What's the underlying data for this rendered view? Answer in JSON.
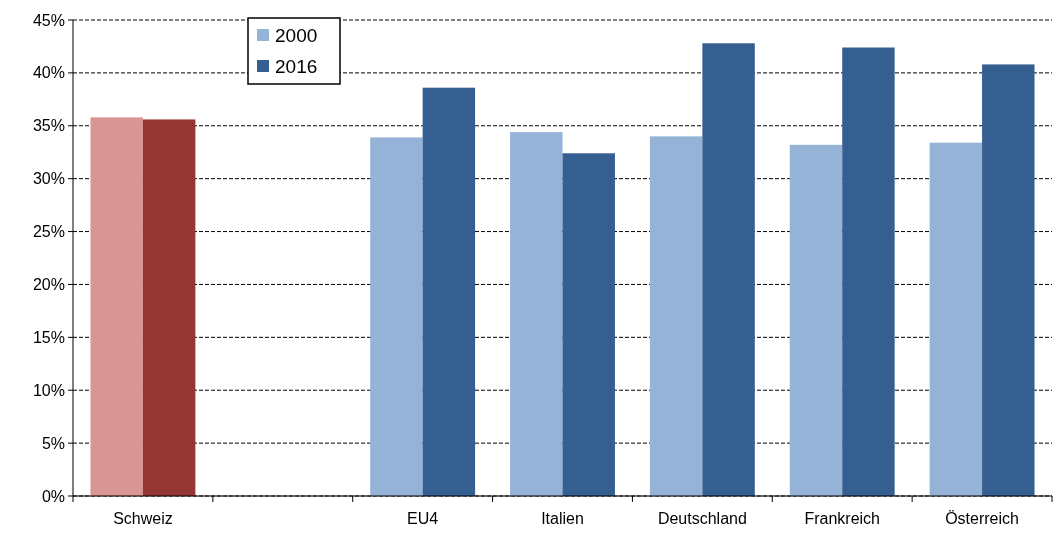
{
  "chart_data": {
    "type": "bar",
    "categories": [
      "Schweiz",
      null,
      "EU4",
      "Italien",
      "Deutschland",
      "Frankreich",
      "Österreich"
    ],
    "series": [
      {
        "name": "2000",
        "color": "#95b3d7",
        "colors": [
          "#d99694",
          null,
          "#95b3d7",
          "#95b3d7",
          "#95b3d7",
          "#95b3d7",
          "#95b3d7"
        ],
        "values": [
          35.8,
          null,
          33.9,
          34.4,
          34.0,
          33.2,
          33.4
        ]
      },
      {
        "name": "2016",
        "color": "#365f91",
        "colors": [
          "#953735",
          null,
          "#365f91",
          "#365f91",
          "#365f91",
          "#365f91",
          "#365f91"
        ],
        "values": [
          35.6,
          null,
          38.6,
          32.4,
          42.8,
          42.4,
          40.8
        ]
      }
    ],
    "ylim": [
      0,
      45
    ],
    "yticks": [
      {
        "value": 0,
        "label": "0%"
      },
      {
        "value": 5,
        "label": "5%"
      },
      {
        "value": 10,
        "label": "10%"
      },
      {
        "value": 15,
        "label": "15%"
      },
      {
        "value": 20,
        "label": "20%"
      },
      {
        "value": 25,
        "label": "25%"
      },
      {
        "value": 30,
        "label": "30%"
      },
      {
        "value": 35,
        "label": "35%"
      },
      {
        "value": 40,
        "label": "40%"
      },
      {
        "value": 45,
        "label": "45%"
      }
    ],
    "grid": "y",
    "legend": "top left"
  }
}
